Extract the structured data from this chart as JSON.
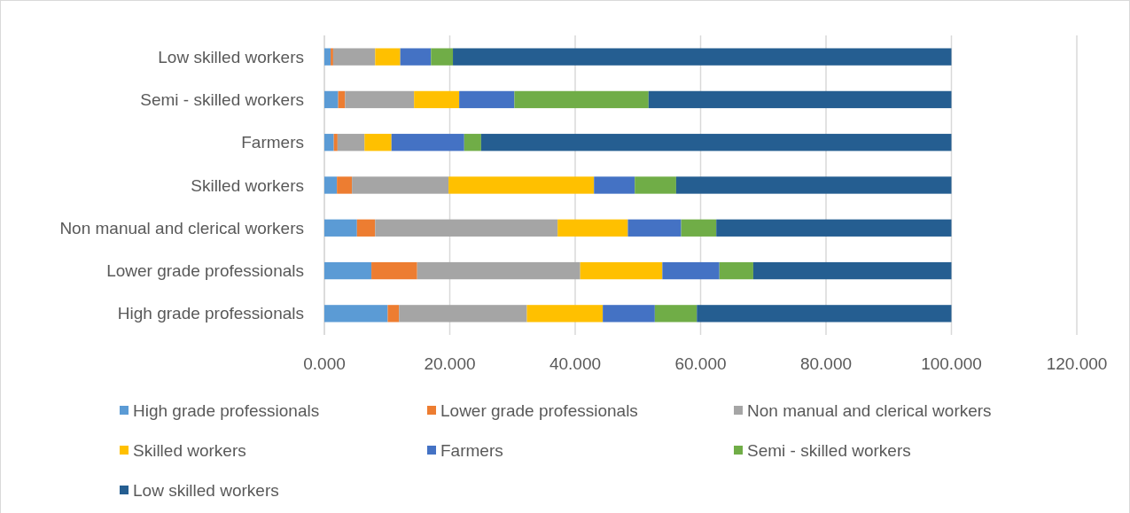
{
  "chart_data": {
    "type": "bar",
    "orientation": "horizontal",
    "stacked": true,
    "categories": [
      "Low skilled workers",
      "Semi - skilled workers",
      "Farmers",
      "Skilled workers",
      "Non manual and clerical workers",
      "Lower grade professionals",
      "High grade professionals"
    ],
    "series": [
      {
        "name": "High grade professionals",
        "color": "#5b9bd5",
        "values": [
          1.0,
          2.2,
          1.5,
          2.0,
          5.2,
          7.5,
          10.1
        ]
      },
      {
        "name": "Lower grade professionals",
        "color": "#ed7d31",
        "values": [
          0.4,
          1.1,
          0.6,
          2.4,
          2.9,
          7.3,
          1.8
        ]
      },
      {
        "name": "Non manual and clerical workers",
        "color": "#a5a5a5",
        "values": [
          6.7,
          11.0,
          4.3,
          15.4,
          29.1,
          26.0,
          20.4
        ]
      },
      {
        "name": "Skilled workers",
        "color": "#ffc000",
        "values": [
          4.0,
          7.2,
          4.3,
          23.2,
          11.2,
          13.1,
          12.1
        ]
      },
      {
        "name": "Farmers",
        "color": "#4472c4",
        "values": [
          4.9,
          8.8,
          11.6,
          6.5,
          8.5,
          9.1,
          8.3
        ]
      },
      {
        "name": "Semi - skilled workers",
        "color": "#70ad47",
        "values": [
          3.5,
          21.4,
          2.7,
          6.6,
          5.6,
          5.4,
          6.7
        ]
      },
      {
        "name": "Low skilled workers",
        "color": "#255e91",
        "values": [
          79.5,
          48.3,
          75.0,
          43.9,
          37.5,
          31.6,
          40.6
        ]
      }
    ],
    "xlim": [
      0,
      120
    ],
    "xticks": [
      {
        "value": 0,
        "label": "0.000"
      },
      {
        "value": 20,
        "label": "20.000"
      },
      {
        "value": 40,
        "label": "40.000"
      },
      {
        "value": 60,
        "label": "60.000"
      },
      {
        "value": 80,
        "label": "80.000"
      },
      {
        "value": 100,
        "label": "100.000"
      },
      {
        "value": 120,
        "label": "120.000"
      }
    ],
    "grid": "x",
    "legend": "bottom"
  }
}
